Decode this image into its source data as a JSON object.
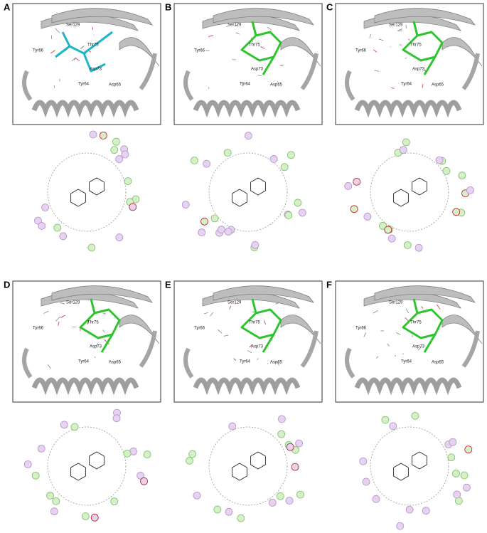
{
  "panels": [
    {
      "label": "A",
      "ligand_color": "#1fb5c9",
      "residues": [
        "Ser129",
        "Tyr66",
        "Thr75",
        "Asp73",
        "Tyr64",
        "Asp65"
      ]
    },
    {
      "label": "B",
      "ligand_color": "#2ec42e",
      "residues": [
        "Ser129",
        "Tyr66",
        "Thr75",
        "Asp73",
        "Tyr64",
        "Asp65"
      ]
    },
    {
      "label": "C",
      "ligand_color": "#2ec42e",
      "residues": [
        "Ser129",
        "Tyr66",
        "Thr75",
        "Asp73",
        "Tyr64",
        "Asp65"
      ]
    },
    {
      "label": "D",
      "ligand_color": "#2ec42e",
      "residues": [
        "Ser129",
        "Tyr66",
        "Thr75",
        "Asp73",
        "Tyr64",
        "Asp65"
      ]
    },
    {
      "label": "E",
      "ligand_color": "#2ec42e",
      "residues": [
        "Ser129",
        "Tyr66",
        "Thr75",
        "Asp73",
        "Tyr64",
        "Asp65"
      ]
    },
    {
      "label": "F",
      "ligand_color": "#2ec42e",
      "residues": [
        "Ser129",
        "Tyr66",
        "Thr75",
        "Asp73",
        "Tyr64",
        "Asp65"
      ]
    }
  ]
}
